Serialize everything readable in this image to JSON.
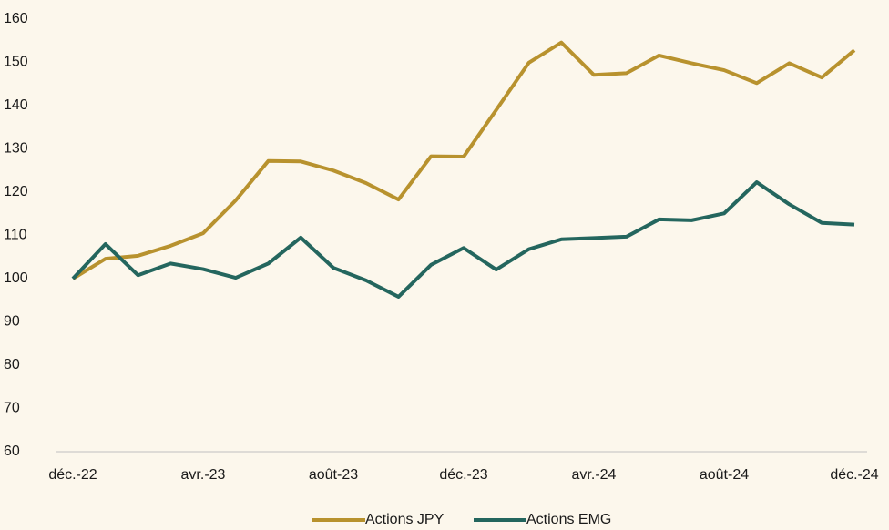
{
  "chart_data": {
    "type": "line",
    "categories": [
      "déc.-22",
      null,
      null,
      null,
      "avr.-23",
      null,
      null,
      null,
      "août-23",
      null,
      null,
      null,
      "déc.-23",
      null,
      null,
      null,
      "avr.-24",
      null,
      null,
      null,
      "août-24",
      null,
      null,
      null,
      "déc.-24"
    ],
    "series": [
      {
        "name": "Actions JPY",
        "color": "#b8922e",
        "values": [
          100,
          104.6,
          105.3,
          107.6,
          110.5,
          118.1,
          127.2,
          127.1,
          125,
          122.1,
          118.3,
          128.3,
          128.2,
          139,
          149.9,
          154.6,
          147.1,
          147.5,
          151.6,
          149.8,
          148.2,
          145.2,
          149.8,
          146.5,
          152.8
        ]
      },
      {
        "name": "Actions EMG",
        "color": "#24665e",
        "values": [
          100,
          108,
          100.8,
          103.5,
          102.2,
          100.2,
          103.5,
          109.5,
          102.5,
          99.6,
          95.8,
          103.2,
          107.1,
          102.1,
          106.8,
          109.1,
          109.4,
          109.7,
          113.7,
          113.5,
          115.1,
          122.3,
          117.2,
          112.9,
          112.5
        ]
      }
    ],
    "ylim": [
      60,
      160
    ],
    "yticks": [
      60,
      70,
      80,
      90,
      100,
      110,
      120,
      130,
      140,
      150,
      160
    ],
    "grid": false,
    "legend": "bottom"
  }
}
